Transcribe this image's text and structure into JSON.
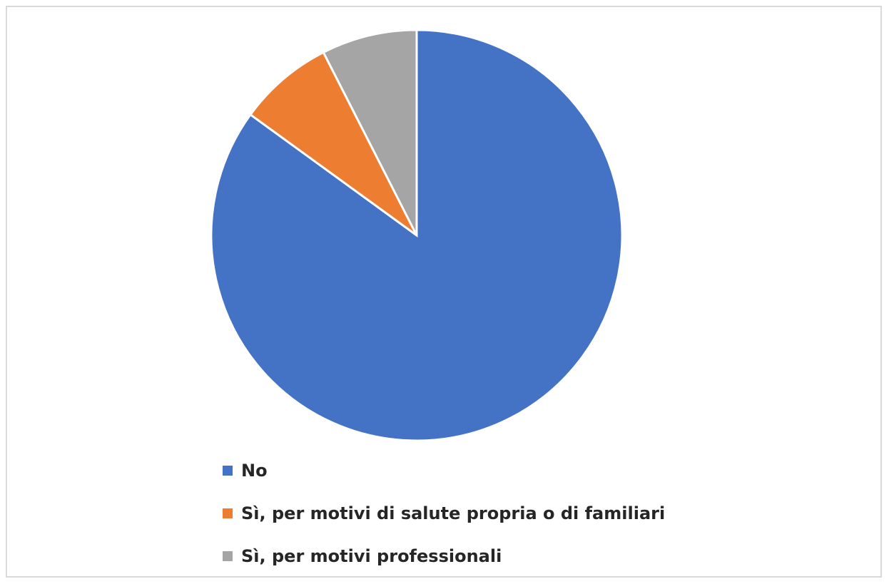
{
  "chart_data": {
    "type": "pie",
    "title": "",
    "slices": [
      {
        "label": "No",
        "value": 85,
        "color": "#4472C4"
      },
      {
        "label": "Sì, per motivi di salute propria o di familiari",
        "value": 7.5,
        "color": "#ED7D31"
      },
      {
        "label": "Sì, per motivi professionali",
        "value": 7.5,
        "color": "#A5A5A5"
      }
    ],
    "start_angle": "12 o'clock",
    "direction": "clockwise",
    "legend_position": "bottom-left"
  }
}
